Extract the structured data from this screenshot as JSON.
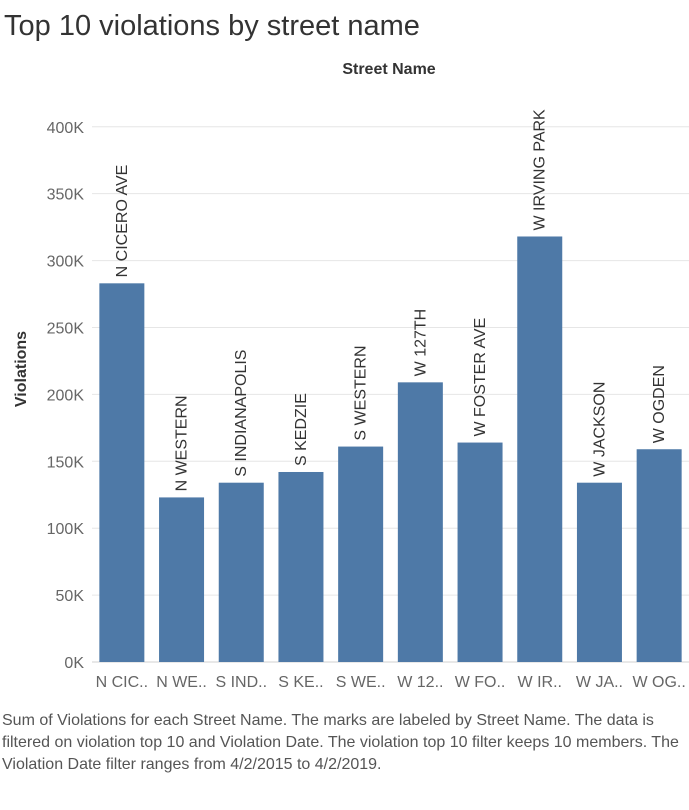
{
  "title": "Top 10 violations by street name",
  "caption": "Sum of Violations for each Street Name.  The marks are labeled by Street Name. The data is filtered on violation top 10 and Violation Date. The violation top 10 filter keeps 10 members. The Violation Date filter ranges from 4/2/2015 to 4/2/2019.",
  "colors": {
    "bar": "#4e79a7",
    "grid": "#e6e6e6",
    "axis_text": "#666666"
  },
  "chart_data": {
    "type": "bar",
    "column_header": "Street Name",
    "ylabel": "Violations",
    "xlabel": "",
    "ylim": [
      0,
      420000
    ],
    "yticks": [
      0,
      50000,
      100000,
      150000,
      200000,
      250000,
      300000,
      350000,
      400000
    ],
    "ytick_labels": [
      "0K",
      "50K",
      "100K",
      "150K",
      "200K",
      "250K",
      "300K",
      "350K",
      "400K"
    ],
    "grid": true,
    "categories": [
      "N CIC..",
      "N WE..",
      "S IND..",
      "S KE..",
      "S WE..",
      "W 12..",
      "W FO..",
      "W IR..",
      "W JA..",
      "W OG.."
    ],
    "bar_labels": [
      "N CICERO AVE",
      "N WESTERN",
      "S INDIANAPOLIS",
      "S KEDZIE",
      "S WESTERN",
      "W 127TH",
      "W FOSTER AVE",
      "W IRVING PARK",
      "W JACKSON",
      "W OGDEN"
    ],
    "values": [
      283000,
      123000,
      134000,
      142000,
      161000,
      209000,
      164000,
      318000,
      134000,
      159000
    ]
  }
}
